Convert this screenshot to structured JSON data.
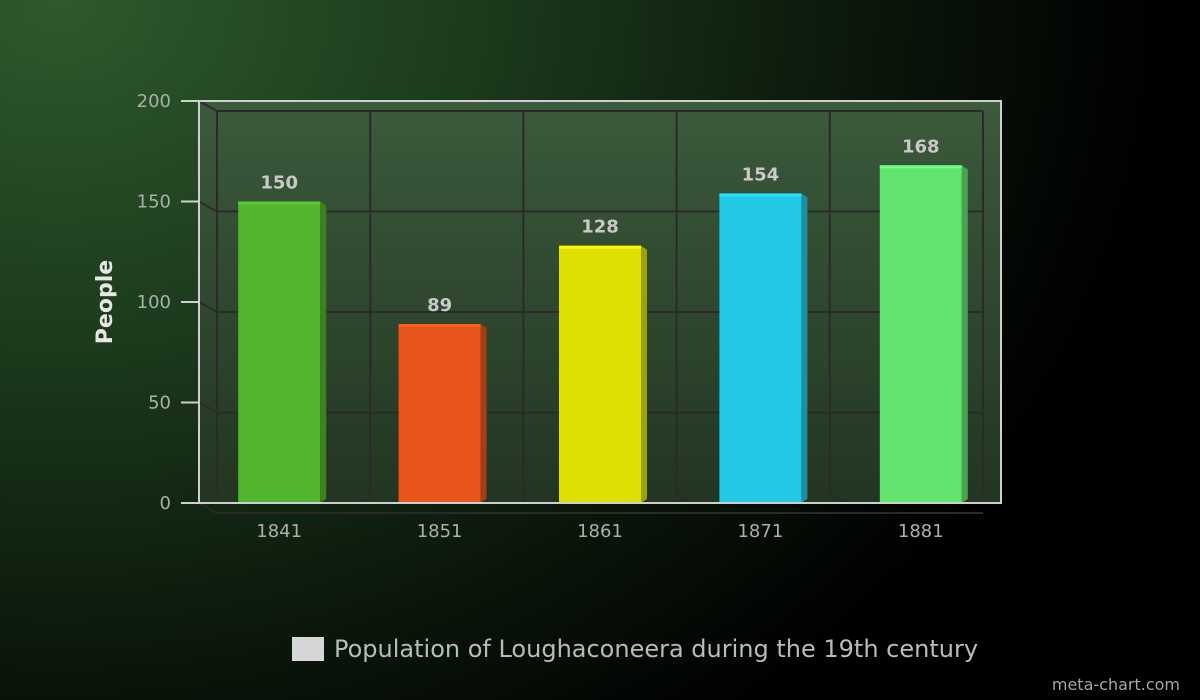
{
  "chart_data": {
    "type": "bar",
    "categories": [
      "1841",
      "1851",
      "1861",
      "1871",
      "1881"
    ],
    "series": [
      {
        "name": "Population of Loughaconeera during the 19th century",
        "values": [
          150,
          89,
          128,
          154,
          168
        ],
        "colors": [
          "#52b52e",
          "#e8551c",
          "#dde000",
          "#22c9e5",
          "#63e46f"
        ]
      }
    ],
    "ylabel": "People",
    "xlabel": "",
    "ylim": [
      0,
      200
    ],
    "yticks": [
      0,
      50,
      100,
      150,
      200
    ],
    "grid": true,
    "legend_position": "bottom",
    "data_labels": true
  },
  "legend": {
    "label": "Population of Loughaconeera during the 19th century",
    "color": "#d6d6d6"
  },
  "credit": "meta-chart.com"
}
